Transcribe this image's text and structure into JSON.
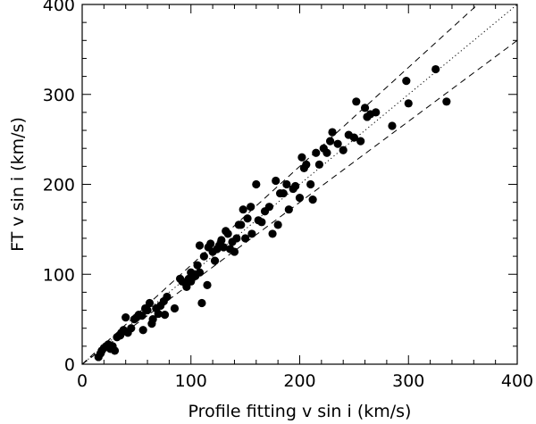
{
  "chart_data": {
    "type": "scatter",
    "xlabel": "Profile fitting v sin i (km/s)",
    "ylabel": "FT v sin i (km/s)",
    "xlim": [
      0,
      400
    ],
    "ylim": [
      0,
      400
    ],
    "xticks": [
      "0",
      "100",
      "200",
      "300",
      "400"
    ],
    "yticks": [
      "0",
      "100",
      "200",
      "300",
      "400"
    ],
    "grid": false,
    "lines": [
      {
        "style": "dotted",
        "slope": 1.0,
        "intercept": 0
      },
      {
        "style": "dashed",
        "slope": 1.1,
        "intercept": 0
      },
      {
        "style": "dashed",
        "slope": 0.9,
        "intercept": 0
      }
    ],
    "points": [
      [
        15,
        8
      ],
      [
        17,
        12
      ],
      [
        18,
        15
      ],
      [
        20,
        18
      ],
      [
        22,
        20
      ],
      [
        24,
        22
      ],
      [
        26,
        17
      ],
      [
        28,
        20
      ],
      [
        30,
        15
      ],
      [
        32,
        30
      ],
      [
        35,
        32
      ],
      [
        36,
        35
      ],
      [
        38,
        38
      ],
      [
        40,
        52
      ],
      [
        42,
        35
      ],
      [
        45,
        40
      ],
      [
        48,
        50
      ],
      [
        50,
        52
      ],
      [
        52,
        55
      ],
      [
        55,
        54
      ],
      [
        56,
        38
      ],
      [
        58,
        62
      ],
      [
        60,
        60
      ],
      [
        62,
        68
      ],
      [
        64,
        45
      ],
      [
        65,
        50
      ],
      [
        68,
        62
      ],
      [
        70,
        56
      ],
      [
        72,
        65
      ],
      [
        75,
        70
      ],
      [
        76,
        55
      ],
      [
        78,
        75
      ],
      [
        85,
        62
      ],
      [
        90,
        95
      ],
      [
        92,
        92
      ],
      [
        95,
        90
      ],
      [
        96,
        86
      ],
      [
        98,
        95
      ],
      [
        100,
        102
      ],
      [
        100,
        92
      ],
      [
        102,
        100
      ],
      [
        104,
        98
      ],
      [
        106,
        110
      ],
      [
        108,
        102
      ],
      [
        108,
        132
      ],
      [
        110,
        68
      ],
      [
        112,
        120
      ],
      [
        115,
        88
      ],
      [
        116,
        130
      ],
      [
        118,
        134
      ],
      [
        120,
        125
      ],
      [
        122,
        115
      ],
      [
        124,
        128
      ],
      [
        126,
        132
      ],
      [
        128,
        138
      ],
      [
        130,
        130
      ],
      [
        132,
        148
      ],
      [
        134,
        145
      ],
      [
        136,
        128
      ],
      [
        138,
        136
      ],
      [
        140,
        125
      ],
      [
        142,
        140
      ],
      [
        144,
        155
      ],
      [
        146,
        155
      ],
      [
        148,
        172
      ],
      [
        150,
        140
      ],
      [
        152,
        162
      ],
      [
        155,
        175
      ],
      [
        156,
        145
      ],
      [
        160,
        200
      ],
      [
        162,
        160
      ],
      [
        165,
        158
      ],
      [
        168,
        170
      ],
      [
        172,
        175
      ],
      [
        175,
        145
      ],
      [
        178,
        204
      ],
      [
        180,
        155
      ],
      [
        182,
        190
      ],
      [
        185,
        190
      ],
      [
        188,
        200
      ],
      [
        190,
        172
      ],
      [
        194,
        195
      ],
      [
        196,
        198
      ],
      [
        200,
        185
      ],
      [
        202,
        230
      ],
      [
        204,
        218
      ],
      [
        206,
        222
      ],
      [
        210,
        200
      ],
      [
        212,
        183
      ],
      [
        215,
        235
      ],
      [
        218,
        222
      ],
      [
        222,
        240
      ],
      [
        225,
        235
      ],
      [
        228,
        248
      ],
      [
        230,
        258
      ],
      [
        235,
        245
      ],
      [
        240,
        238
      ],
      [
        245,
        255
      ],
      [
        250,
        252
      ],
      [
        252,
        292
      ],
      [
        256,
        248
      ],
      [
        260,
        285
      ],
      [
        262,
        275
      ],
      [
        265,
        278
      ],
      [
        270,
        280
      ],
      [
        285,
        265
      ],
      [
        298,
        315
      ],
      [
        300,
        290
      ],
      [
        325,
        328
      ],
      [
        335,
        292
      ]
    ]
  }
}
